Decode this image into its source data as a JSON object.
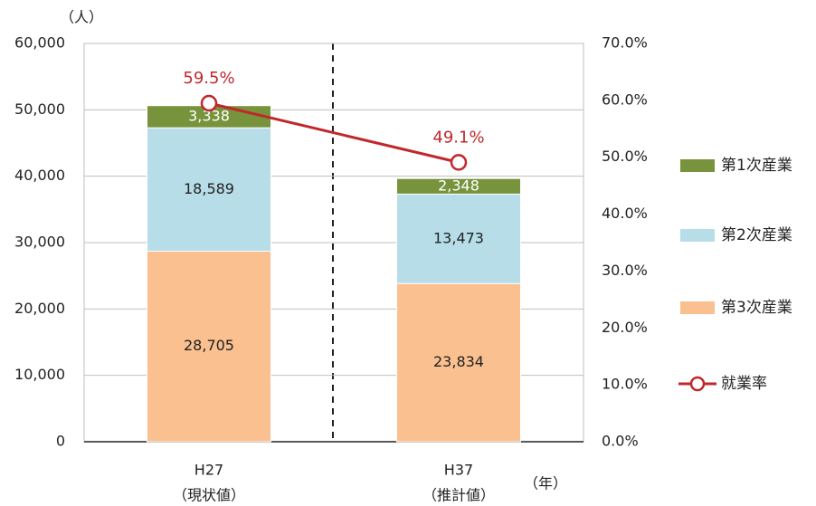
{
  "chart_data": {
    "type": "bar",
    "stacked": true,
    "y_unit_label": "（人）",
    "x_unit_label": "（年）",
    "categories": [
      "H27",
      "H37"
    ],
    "category_notes": [
      "（現状値）",
      "（推計値）"
    ],
    "series": [
      {
        "name": "第1次産業",
        "color": "#77933c",
        "label_color": "#ffffff",
        "values": [
          3338,
          2348
        ],
        "value_labels": [
          "3,338",
          "2,348"
        ]
      },
      {
        "name": "第2次産業",
        "color": "#b7dde8",
        "label_color": "#222222",
        "values": [
          18589,
          13473
        ],
        "value_labels": [
          "18,589",
          "13,473"
        ]
      },
      {
        "name": "第3次産業",
        "color": "#fac090",
        "label_color": "#222222",
        "values": [
          28705,
          23834
        ],
        "value_labels": [
          "28,705",
          "23,834"
        ]
      },
      {
        "name": "就業率",
        "type": "line",
        "axis": "y2",
        "color": "#c0282d",
        "values": [
          59.5,
          49.1
        ],
        "value_labels": [
          "59.5%",
          "49.1%"
        ]
      }
    ],
    "ylim": [
      0,
      60000
    ],
    "yticks": [
      {
        "value": 0,
        "label": "0"
      },
      {
        "value": 10000,
        "label": "10,000"
      },
      {
        "value": 20000,
        "label": "20,000"
      },
      {
        "value": 30000,
        "label": "30,000"
      },
      {
        "value": 40000,
        "label": "40,000"
      },
      {
        "value": 50000,
        "label": "50,000"
      },
      {
        "value": 60000,
        "label": "60,000"
      }
    ],
    "y2lim": [
      0,
      70
    ],
    "y2ticks": [
      {
        "value": 0,
        "label": "0.0%"
      },
      {
        "value": 10,
        "label": "10.0%"
      },
      {
        "value": 20,
        "label": "20.0%"
      },
      {
        "value": 30,
        "label": "30.0%"
      },
      {
        "value": 40,
        "label": "40.0%"
      },
      {
        "value": 50,
        "label": "50.0%"
      },
      {
        "value": 60,
        "label": "60.0%"
      },
      {
        "value": 70,
        "label": "70.0%"
      }
    ],
    "grid": true
  }
}
